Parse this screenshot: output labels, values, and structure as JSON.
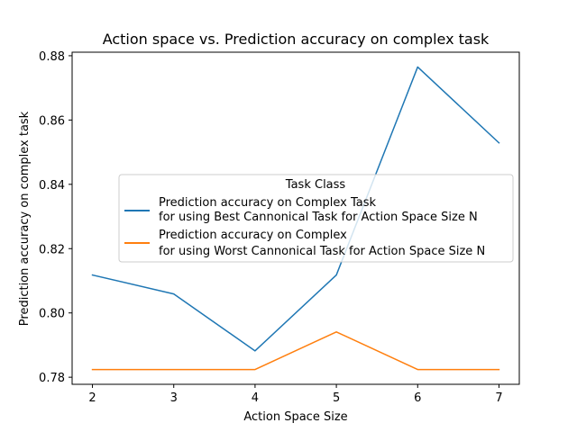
{
  "chart_data": {
    "type": "line",
    "title": "Action space vs. Prediction accuracy on complex task",
    "xlabel": "Action Space Size",
    "ylabel": "Prediction accuracy on complex task",
    "x": [
      2,
      3,
      4,
      5,
      6,
      7
    ],
    "xlim": [
      1.75,
      7.25
    ],
    "ylim": [
      0.7778,
      0.8811
    ],
    "xticks": [
      "2",
      "3",
      "4",
      "5",
      "6",
      "7"
    ],
    "yticks": [
      "0.78",
      "0.80",
      "0.82",
      "0.84",
      "0.86",
      "0.88"
    ],
    "grid": false,
    "legend": {
      "title": "Task Class",
      "placement": "center-right"
    },
    "series": [
      {
        "name_line1": "Prediction accuracy on Complex Task",
        "name_line2": "for using Best Cannonical Task for Action Space Size N",
        "color": "#1f77b4",
        "values": [
          0.8118,
          0.8059,
          0.7882,
          0.8118,
          0.8765,
          0.8529
        ]
      },
      {
        "name_line1": "Prediction accuracy on Complex",
        "name_line2": "for using Worst Cannonical Task for Action Space Size N",
        "color": "#ff7f0e",
        "values": [
          0.7824,
          0.7824,
          0.7824,
          0.7941,
          0.7824,
          0.7824
        ]
      }
    ]
  }
}
